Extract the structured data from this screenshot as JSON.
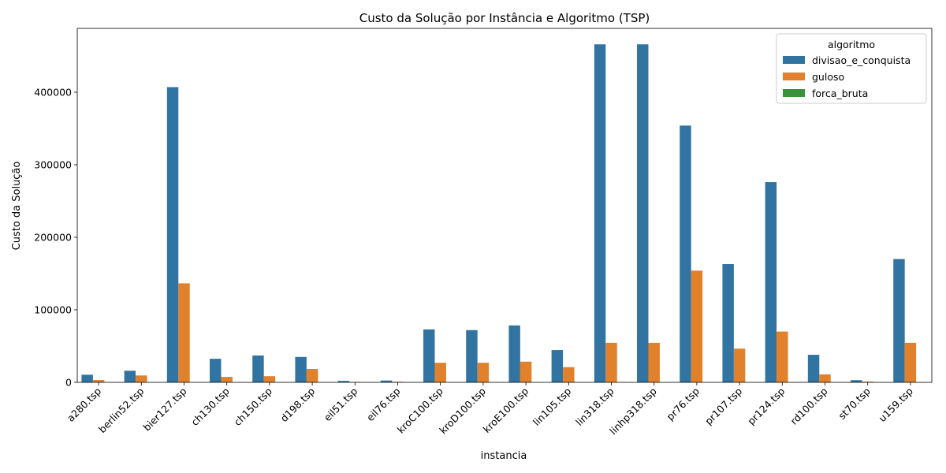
{
  "chart_data": {
    "type": "bar",
    "title": "Custo da Solução por Instância e Algoritmo (TSP)",
    "xlabel": "instancia",
    "ylabel": "Custo da Solução",
    "ylim": [
      0,
      488000
    ],
    "yticks": [
      0,
      100000,
      200000,
      300000,
      400000
    ],
    "ytick_labels": [
      "0",
      "100000",
      "200000",
      "300000",
      "400000"
    ],
    "grid": false,
    "legend": {
      "title": "algoritmo",
      "placement": "top-right"
    },
    "categories": [
      "a280.tsp",
      "berlin52.tsp",
      "bier127.tsp",
      "ch130.tsp",
      "ch150.tsp",
      "d198.tsp",
      "eil51.tsp",
      "eil76.tsp",
      "kroC100.tsp",
      "kroD100.tsp",
      "kroE100.tsp",
      "lin105.tsp",
      "lin318.tsp",
      "linhp318.tsp",
      "pr76.tsp",
      "pr107.tsp",
      "pr124.tsp",
      "rd100.tsp",
      "st70.tsp",
      "u159.tsp"
    ],
    "series": [
      {
        "name": "divisao_e_conquista",
        "color": "#3274a1",
        "values": [
          10500,
          16000,
          407000,
          32500,
          37000,
          35000,
          2000,
          2500,
          73000,
          72000,
          78500,
          44500,
          466000,
          466000,
          354000,
          163000,
          276000,
          38000,
          3000,
          170000
        ]
      },
      {
        "name": "guloso",
        "color": "#e1812c",
        "values": [
          3200,
          9500,
          136500,
          7500,
          8500,
          18500,
          600,
          800,
          27000,
          27000,
          28500,
          21000,
          54500,
          54500,
          154000,
          46500,
          70000,
          11000,
          1000,
          54500
        ]
      },
      {
        "name": "forca_bruta",
        "color": "#3a923a",
        "values": [
          0,
          0,
          0,
          0,
          0,
          0,
          0,
          0,
          0,
          0,
          0,
          0,
          0,
          0,
          0,
          0,
          0,
          0,
          0,
          0
        ]
      }
    ]
  }
}
